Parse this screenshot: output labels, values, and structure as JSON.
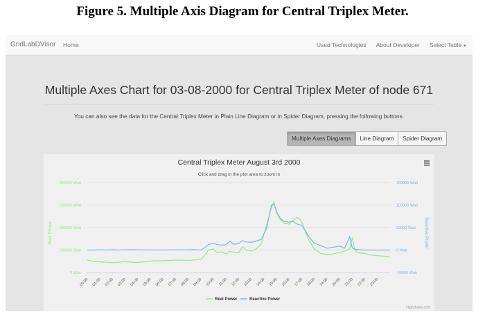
{
  "caption": "Figure 5. Multiple Axis Diagram for Central Triplex Meter.",
  "navbar": {
    "brand": "GridLabDVisor",
    "home": "Home",
    "used_tech": "Used Technologies",
    "about": "About Developer",
    "select_table": "Select Table"
  },
  "page": {
    "title": "Multiple Axes Chart for 03-08-2000 for Central Triplex Meter of node 671",
    "description": "You can also see the data for the Central Triplex Meter in Plain Line Diagram or in Spider Diagram, pressing the following buttons.",
    "buttons": [
      "Multiple Axes Diagrams",
      "Line Diagram",
      "Spider Diagram"
    ],
    "active_button": 0
  },
  "colors": {
    "real": "#90ed7d",
    "reactive": "#7cb5ec"
  },
  "chart_data": {
    "type": "line",
    "title": "Central Triplex Meter August 3rd 2000",
    "subtitle": "Click and drag in the plot area to zoom in",
    "menu_icon": "hamburger-menu-icon",
    "credits": "Highcharts.com",
    "x_ticks": [
      "00:00",
      "01:00",
      "02:00",
      "03:00",
      "04:00",
      "05:00",
      "06:00",
      "07:00",
      "08:00",
      "09:00",
      "10:00",
      "11:00",
      "12:00",
      "13:00",
      "14:00",
      "15:00",
      "16:00",
      "17:00",
      "18:00",
      "19:00",
      "20:00",
      "21:00",
      "22:00",
      "23:00"
    ],
    "y_left": {
      "label": "Real Power",
      "ticks": [
        "0 Watt",
        "200000 Watt",
        "400000 Watt",
        "600000 Watt",
        "800000 Watt"
      ],
      "range": [
        0,
        800000
      ]
    },
    "y_right": {
      "label": "Reactive Power",
      "ticks": [
        "-50000 Watt",
        "0 Watt",
        "50000 Watt",
        "100000 Watt",
        "150000 Watt"
      ],
      "range": [
        -50000,
        150000
      ]
    },
    "grid": true,
    "legend": "bottom-center",
    "series": [
      {
        "name": "Real Power",
        "axis": "left",
        "x": [
          0,
          0.25,
          0.5,
          0.75,
          1,
          1.5,
          2,
          2.5,
          3,
          3.5,
          4,
          4.5,
          5,
          6,
          7,
          8,
          8.5,
          9,
          9.3,
          9.6,
          10,
          10.3,
          10.6,
          11,
          11.3,
          11.6,
          12,
          12.3,
          12.6,
          13,
          13.4,
          13.8,
          14.2,
          14.6,
          14.8,
          15,
          15.3,
          15.6,
          16,
          16.3,
          16.6,
          16.8,
          17,
          17.3,
          17.6,
          18,
          18.5,
          19,
          19.5,
          20,
          20.4,
          20.8,
          21,
          21.2,
          21.5,
          22,
          22.5,
          23,
          23.5,
          24
        ],
        "values": [
          110000,
          105000,
          98000,
          100000,
          95000,
          92000,
          88000,
          92000,
          98000,
          92000,
          90000,
          95000,
          102000,
          105000,
          110000,
          108000,
          112000,
          118000,
          150000,
          200000,
          210000,
          175000,
          185000,
          165000,
          190000,
          180000,
          175000,
          230000,
          200000,
          190000,
          210000,
          260000,
          420000,
          580000,
          630000,
          530000,
          470000,
          440000,
          430000,
          460000,
          490000,
          480000,
          450000,
          360000,
          280000,
          210000,
          170000,
          160000,
          165000,
          180000,
          190000,
          210000,
          310000,
          200000,
          175000,
          170000,
          155000,
          150000,
          145000,
          140000
        ]
      },
      {
        "name": "Reactive Power",
        "axis": "right",
        "x": [
          0,
          0.5,
          1,
          1.5,
          2,
          2.5,
          3,
          3.5,
          4,
          4.5,
          5,
          6,
          7,
          8,
          8.5,
          9,
          9.3,
          9.6,
          10,
          10.3,
          10.6,
          11,
          11.3,
          11.6,
          12,
          12.3,
          12.6,
          13,
          13.4,
          13.8,
          14.2,
          14.6,
          14.8,
          15,
          15.3,
          15.6,
          16,
          16.3,
          16.6,
          17,
          17.3,
          17.6,
          18,
          18.5,
          19,
          19.5,
          20,
          20.4,
          20.8,
          21,
          21.2,
          21.5,
          22,
          22.5,
          23,
          23.5,
          24
        ],
        "values": [
          0,
          0,
          500,
          0,
          600,
          0,
          400,
          700,
          500,
          0,
          300,
          0,
          500,
          600,
          1000,
          0,
          5000,
          12000,
          15000,
          12000,
          11000,
          12000,
          20000,
          13000,
          14000,
          21000,
          18000,
          17000,
          20000,
          24000,
          48000,
          100000,
          102000,
          86000,
          70000,
          64000,
          62000,
          64000,
          58000,
          55000,
          42000,
          28000,
          15000,
          10000,
          4000,
          6000,
          9000,
          4000,
          30000,
          5000,
          2000,
          1000,
          0,
          0,
          0,
          0,
          0
        ]
      }
    ]
  }
}
